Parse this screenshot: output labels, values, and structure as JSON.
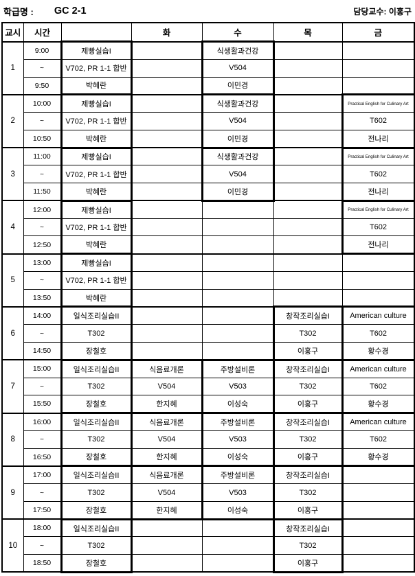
{
  "header": {
    "class_label": "학급명 :",
    "class_name": "GC 2-1",
    "professor": "담당교수: 이홍구"
  },
  "table": {
    "day_headers": [
      "교시",
      "시간",
      "",
      "화",
      "수",
      "목",
      "금"
    ],
    "tilde": "~",
    "day_keys": [
      "mon",
      "tue",
      "wed",
      "thu",
      "fri"
    ],
    "periods": [
      {
        "no": "1",
        "start": "9:00",
        "end": "9:50",
        "days": [
          {
            "subject": "제빵실습I",
            "room": "V702, PR 1-1 합반",
            "teacher": "박혜란"
          },
          null,
          {
            "subject": "식생활과건강",
            "room": "V504",
            "teacher": "이민경"
          },
          null,
          null
        ]
      },
      {
        "no": "2",
        "start": "10:00",
        "end": "10:50",
        "days": [
          {
            "subject": "제빵실습I",
            "room": "V702, PR 1-1 합반",
            "teacher": "박혜란"
          },
          null,
          {
            "subject": "식생활과건강",
            "room": "V504",
            "teacher": "이민경"
          },
          null,
          {
            "subject": "Practical English for Culinary Art",
            "room": "T602",
            "teacher": "전나리"
          }
        ]
      },
      {
        "no": "3",
        "start": "11:00",
        "end": "11:50",
        "days": [
          {
            "subject": "제빵실습I",
            "room": "V702, PR 1-1 합반",
            "teacher": "박혜란"
          },
          null,
          {
            "subject": "식생활과건강",
            "room": "V504",
            "teacher": "이민경"
          },
          null,
          {
            "subject": "Practical English for Culinary Art",
            "room": "T602",
            "teacher": "전나리"
          }
        ]
      },
      {
        "no": "4",
        "start": "12:00",
        "end": "12:50",
        "days": [
          {
            "subject": "제빵실습I",
            "room": "V702, PR 1-1 합반",
            "teacher": "박혜란"
          },
          null,
          null,
          null,
          {
            "subject": "Practical English for Culinary Art",
            "room": "T602",
            "teacher": "전나리"
          }
        ]
      },
      {
        "no": "5",
        "start": "13:00",
        "end": "13:50",
        "days": [
          {
            "subject": "제빵실습I",
            "room": "V702, PR 1-1 합반",
            "teacher": "박혜란"
          },
          null,
          null,
          null,
          null
        ]
      },
      {
        "no": "6",
        "start": "14:00",
        "end": "14:50",
        "days": [
          {
            "subject": "일식조리실습II",
            "room": "T302",
            "teacher": "장철호"
          },
          null,
          null,
          {
            "subject": "창작조리실습I",
            "room": "T302",
            "teacher": "이홍구"
          },
          {
            "subject": "American culture",
            "room": "T602",
            "teacher": "황수경"
          }
        ]
      },
      {
        "no": "7",
        "start": "15:00",
        "end": "15:50",
        "days": [
          {
            "subject": "일식조리실습II",
            "room": "T302",
            "teacher": "장철호"
          },
          {
            "subject": "식음료개론",
            "room": "V504",
            "teacher": "한지혜"
          },
          {
            "subject": "주방설비론",
            "room": "V503",
            "teacher": "이성숙"
          },
          {
            "subject": "창작조리실습I",
            "room": "T302",
            "teacher": "이홍구"
          },
          {
            "subject": "American culture",
            "room": "T602",
            "teacher": "황수경"
          }
        ]
      },
      {
        "no": "8",
        "start": "16:00",
        "end": "16:50",
        "days": [
          {
            "subject": "일식조리실습II",
            "room": "T302",
            "teacher": "장철호"
          },
          {
            "subject": "식음료개론",
            "room": "V504",
            "teacher": "한지혜"
          },
          {
            "subject": "주방설비론",
            "room": "V503",
            "teacher": "이성숙"
          },
          {
            "subject": "창작조리실습I",
            "room": "T302",
            "teacher": "이홍구"
          },
          {
            "subject": "American culture",
            "room": "T602",
            "teacher": "황수경"
          }
        ]
      },
      {
        "no": "9",
        "start": "17:00",
        "end": "17:50",
        "days": [
          {
            "subject": "일식조리실습II",
            "room": "T302",
            "teacher": "장철호"
          },
          {
            "subject": "식음료개론",
            "room": "V504",
            "teacher": "한지혜"
          },
          {
            "subject": "주방설비론",
            "room": "V503",
            "teacher": "이성숙"
          },
          {
            "subject": "창작조리실습I",
            "room": "T302",
            "teacher": "이홍구"
          },
          null
        ]
      },
      {
        "no": "10",
        "start": "18:00",
        "end": "18:50",
        "days": [
          {
            "subject": "일식조리실습II",
            "room": "T302",
            "teacher": "장철호"
          },
          null,
          null,
          {
            "subject": "창작조리실습I",
            "room": "T302",
            "teacher": "이홍구"
          },
          null
        ]
      }
    ]
  }
}
